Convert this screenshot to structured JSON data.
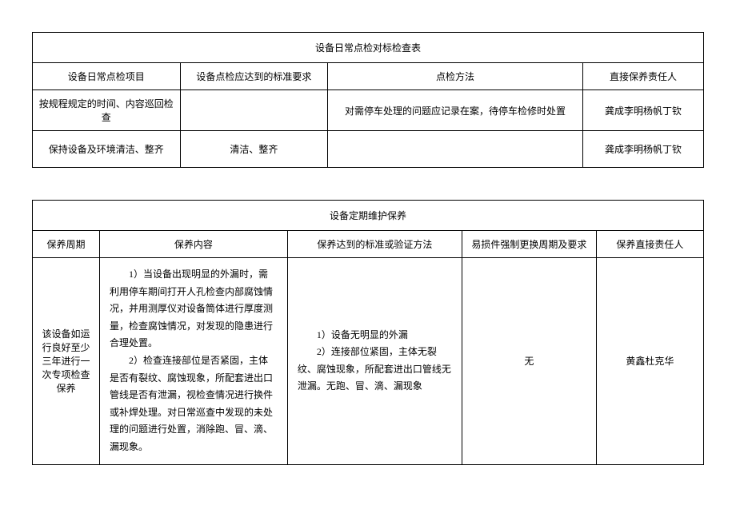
{
  "table1": {
    "title": "设备日常点检对标检查表",
    "headers": [
      "设备日常点检项目",
      "设备点检应达到的标准要求",
      "点检方法",
      "直接保养责任人"
    ],
    "rows": [
      [
        "按规程规定的时间、内容巡回检查",
        "",
        "对需停车处理的问题应记录在案，待停车检修时处置",
        "龚成李明杨帆丁钦"
      ],
      [
        "保持设备及环境清洁、整齐",
        "清洁、整齐",
        "",
        "龚成李明杨帆丁钦"
      ]
    ]
  },
  "table2": {
    "title": "设备定期维护保养",
    "headers": [
      "保养周期",
      "保养内容",
      "保养达到的标准或验证方法",
      "易损件强制更换周期及要求",
      "保养直接责任人"
    ],
    "row": {
      "period": "该设备如运行良好至少三年进行一次专项检查保养",
      "content": "　　1）当设备出现明显的外漏时，需利用停车期间打开人孔检查内部腐蚀情况，并用测厚仪对设备筒体进行厚度测量，检查腐蚀情况，对发现的隐患进行合理处置。\n　　2）检查连接部位是否紧固，主体是否有裂纹、腐蚀现象，所配套进出口管线是否有泄漏，视检查情况进行换件或补焊处理。对日常巡查中发现的未处理的问题进行处置，消除跑、冒、滴、漏现象。",
      "verify": "　　1）设备无明显的外漏\n　　2）连接部位紧固，主体无裂纹、腐蚀现象，所配套进出口管线无泄漏。无跑、冒、滴、漏现象",
      "replace": "无",
      "person": "黄鑫杜克华"
    }
  }
}
